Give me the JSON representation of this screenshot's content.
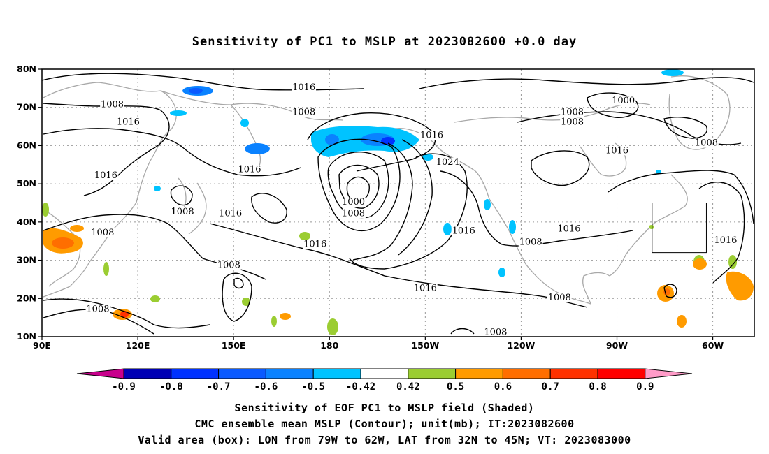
{
  "title": "Sensitivity of PC1 to MSLP at 2023082600 +0.0 day",
  "axes": {
    "lat_labels": [
      "80N",
      "70N",
      "60N",
      "50N",
      "40N",
      "30N",
      "20N",
      "10N"
    ],
    "lon_labels": [
      "90E",
      "120E",
      "150E",
      "180",
      "150W",
      "120W",
      "90W",
      "60W"
    ]
  },
  "contour_labels": [
    {
      "text": "1016",
      "lon": 172,
      "lat": 74.5
    },
    {
      "text": "1008",
      "lon": 112,
      "lat": 70
    },
    {
      "text": "1016",
      "lon": 117,
      "lat": 65.5
    },
    {
      "text": "1008",
      "lon": 172,
      "lat": 68
    },
    {
      "text": "1000",
      "lon": 272,
      "lat": 71
    },
    {
      "text": "1008",
      "lon": 256,
      "lat": 68
    },
    {
      "text": "1008",
      "lon": 256,
      "lat": 65.5
    },
    {
      "text": "1016",
      "lon": 212,
      "lat": 62
    },
    {
      "text": "1008",
      "lon": 298,
      "lat": 60
    },
    {
      "text": "1016",
      "lon": 270,
      "lat": 58
    },
    {
      "text": "1024",
      "lon": 217,
      "lat": 55
    },
    {
      "text": "1016",
      "lon": 110,
      "lat": 51.5
    },
    {
      "text": "1016",
      "lon": 155,
      "lat": 53
    },
    {
      "text": "1000",
      "lon": 187.5,
      "lat": 44.5
    },
    {
      "text": "1008",
      "lon": 187.5,
      "lat": 41.5
    },
    {
      "text": "1008",
      "lon": 134,
      "lat": 42
    },
    {
      "text": "1016",
      "lon": 149,
      "lat": 41.5
    },
    {
      "text": "1008",
      "lon": 109,
      "lat": 36.5
    },
    {
      "text": "1016",
      "lon": 175.5,
      "lat": 33.5
    },
    {
      "text": "1016",
      "lon": 222,
      "lat": 37
    },
    {
      "text": "1016",
      "lon": 255,
      "lat": 37.5
    },
    {
      "text": "1008",
      "lon": 243,
      "lat": 34
    },
    {
      "text": "1016",
      "lon": 304,
      "lat": 34.5
    },
    {
      "text": "1008",
      "lon": 148.5,
      "lat": 28
    },
    {
      "text": "1016",
      "lon": 210,
      "lat": 22
    },
    {
      "text": "1008",
      "lon": 107.5,
      "lat": 16.5
    },
    {
      "text": "1008",
      "lon": 252,
      "lat": 19.5
    },
    {
      "text": "1008",
      "lon": 232,
      "lat": 10.5
    }
  ],
  "colorbar": {
    "labels": [
      "-0.9",
      "-0.8",
      "-0.7",
      "-0.6",
      "-0.5",
      "-0.42",
      "0.42",
      "0.5",
      "0.6",
      "0.7",
      "0.8",
      "0.9"
    ],
    "colors": [
      "#0000b4",
      "#0032ff",
      "#0a5aff",
      "#0a82ff",
      "#00c3ff",
      "#ffffff",
      "#9bcd32",
      "#ff9b00",
      "#ff6e00",
      "#ff3200",
      "#ff0000"
    ],
    "low_end_color": "#c8008c",
    "high_end_color": "#ff9bc8"
  },
  "captions": [
    "Sensitivity of EOF PC1 to MSLP field (Shaded)",
    "CMC ensemble mean MSLP (Contour); unit(mb); IT:2023082600",
    "Valid area (box): LON from 79W to 62W, LAT from 32N to 45N; VT: 2023083000"
  ],
  "valid_box": {
    "lon_min": -79,
    "lon_max": -62,
    "lat_min": 32,
    "lat_max": 45
  }
}
